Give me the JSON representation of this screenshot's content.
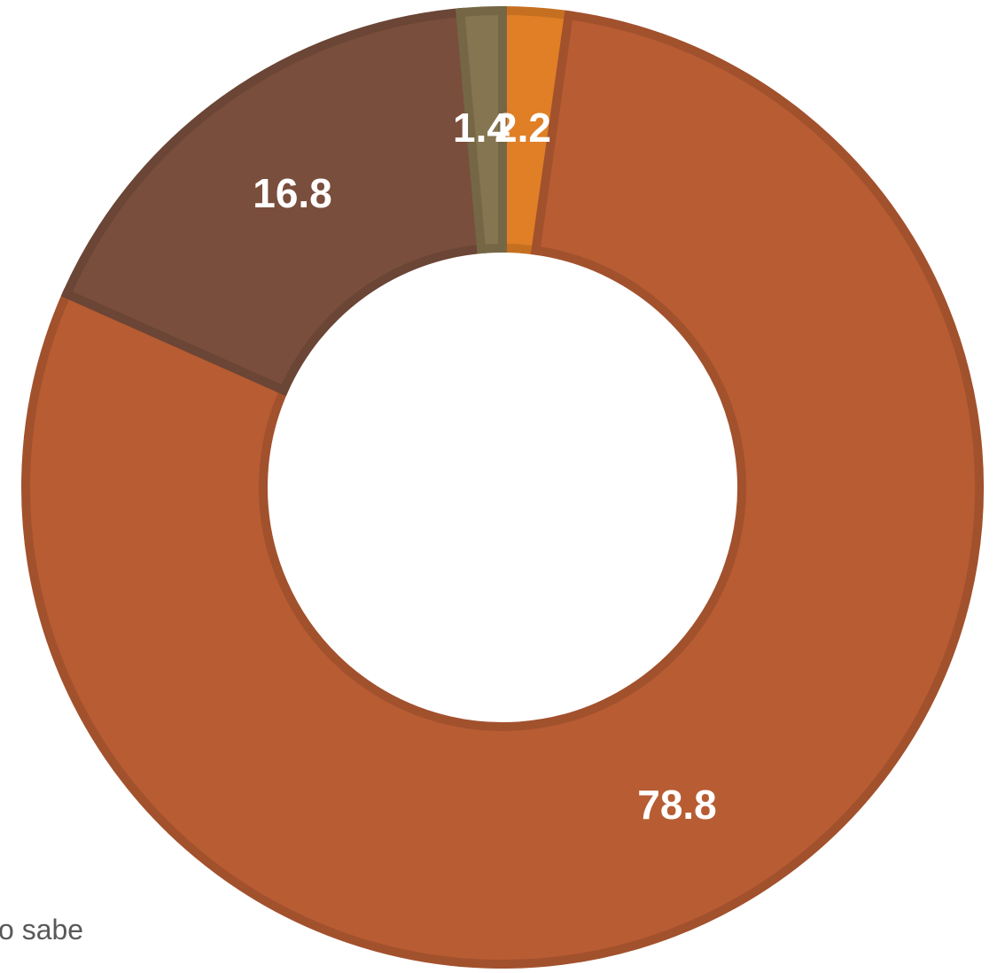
{
  "chart_data": {
    "type": "pie",
    "donut": true,
    "slices": [
      {
        "value": 2.2,
        "label": "2.2",
        "color": "#E07F26"
      },
      {
        "value": 78.8,
        "label": "78.8",
        "color": "#B85C33"
      },
      {
        "value": 16.8,
        "label": "16.8",
        "color": "#7A4E3C"
      },
      {
        "value": 1.4,
        "label": "1.4",
        "color": "#857550"
      }
    ],
    "legend_fragment": "o sabe"
  }
}
